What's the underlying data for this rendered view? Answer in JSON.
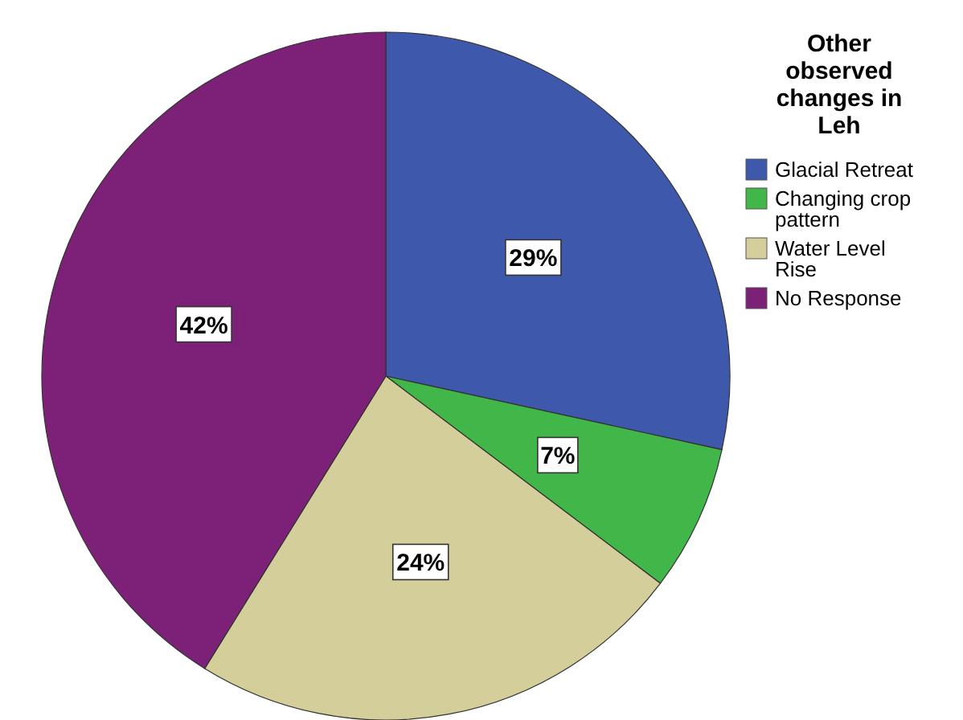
{
  "chart_data": {
    "type": "pie",
    "legend_title": "Other observed changes in Leh",
    "categories": [
      "Glacial Retreat",
      "Changing crop pattern",
      "Water Level Rise",
      "No Response"
    ],
    "values": [
      29,
      7,
      24,
      42
    ],
    "colors": [
      "#3e58ac",
      "#41b649",
      "#d4ce9a",
      "#7d2178"
    ],
    "value_labels": [
      "29%",
      "7%",
      "24%",
      "42%"
    ],
    "legend": "right"
  }
}
